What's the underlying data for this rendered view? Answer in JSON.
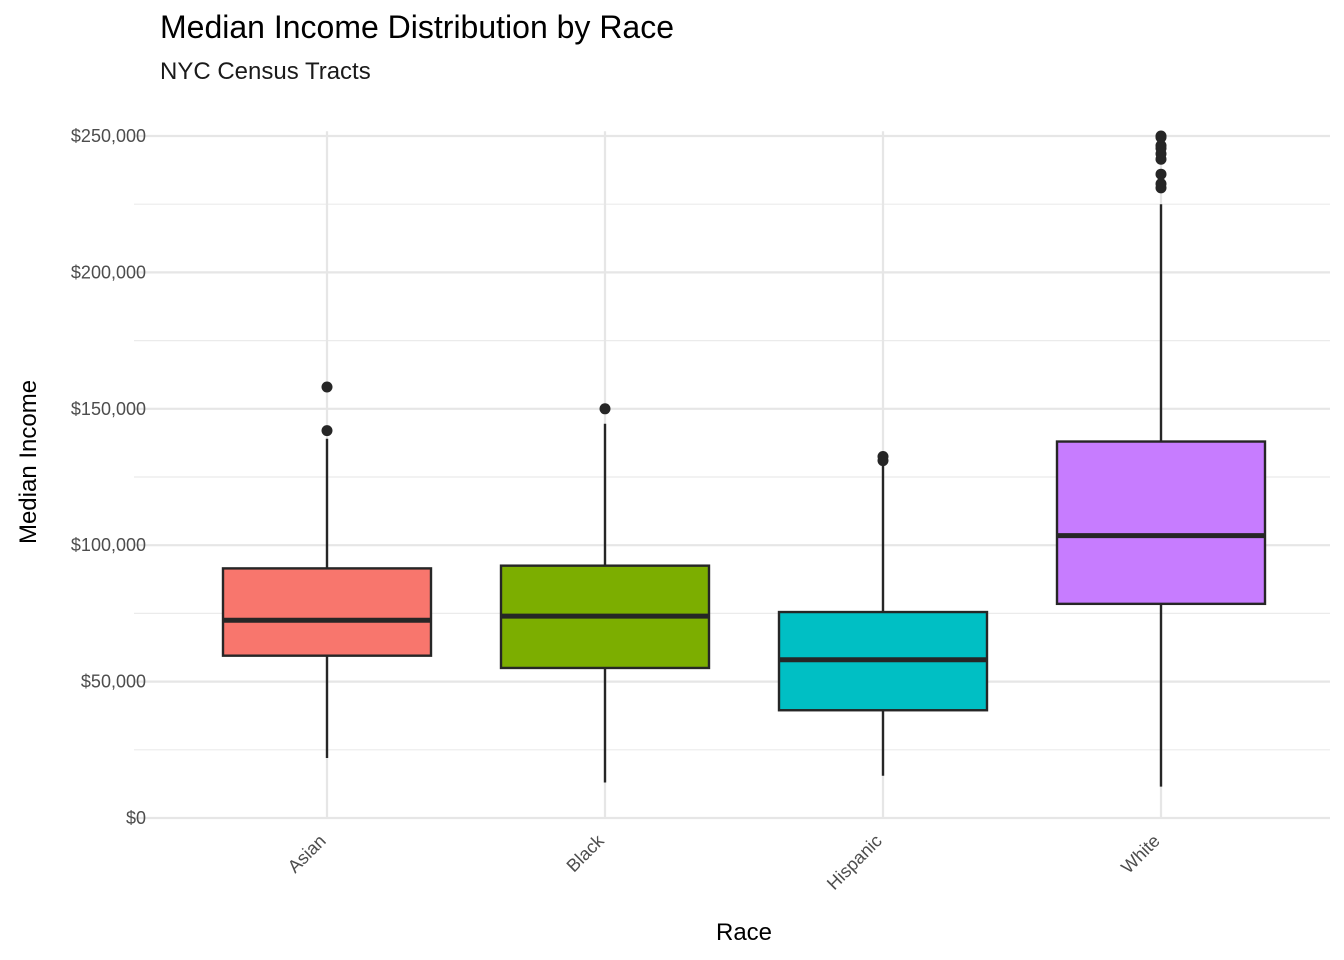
{
  "title": "Median Income Distribution by Race",
  "subtitle": "NYC Census Tracts",
  "chart_data": {
    "type": "boxplot",
    "xlabel": "Race",
    "ylabel": "Median Income",
    "ylim": [
      0,
      262000
    ],
    "y_ticks": [
      0,
      50000,
      100000,
      150000,
      200000,
      250000
    ],
    "y_tick_labels": [
      "$0",
      "$50,000",
      "$100,000",
      "$150,000",
      "$200,000",
      "$250,000"
    ],
    "grid": true,
    "legend": "none",
    "categories": [
      "Asian",
      "Black",
      "Hispanic",
      "White"
    ],
    "boxes": [
      {
        "category": "Asian",
        "color": "#F8766D",
        "min": 22000,
        "q1": 59500,
        "median": 72500,
        "q3": 91500,
        "max": 139000,
        "outliers": [
          142000,
          158000
        ]
      },
      {
        "category": "Black",
        "color": "#7CAE00",
        "min": 13000,
        "q1": 55000,
        "median": 74000,
        "q3": 92500,
        "max": 144500,
        "outliers": [
          150000
        ]
      },
      {
        "category": "Hispanic",
        "color": "#00BFC4",
        "min": 15500,
        "q1": 39500,
        "median": 58000,
        "q3": 75500,
        "max": 130500,
        "outliers": [
          131000,
          132500
        ]
      },
      {
        "category": "White",
        "color": "#C77CFF",
        "min": 11500,
        "q1": 78500,
        "median": 103500,
        "q3": 138000,
        "max": 225000,
        "outliers": [
          231000,
          232500,
          236000,
          241500,
          243500,
          245500,
          246500,
          249500,
          250000
        ]
      }
    ]
  }
}
